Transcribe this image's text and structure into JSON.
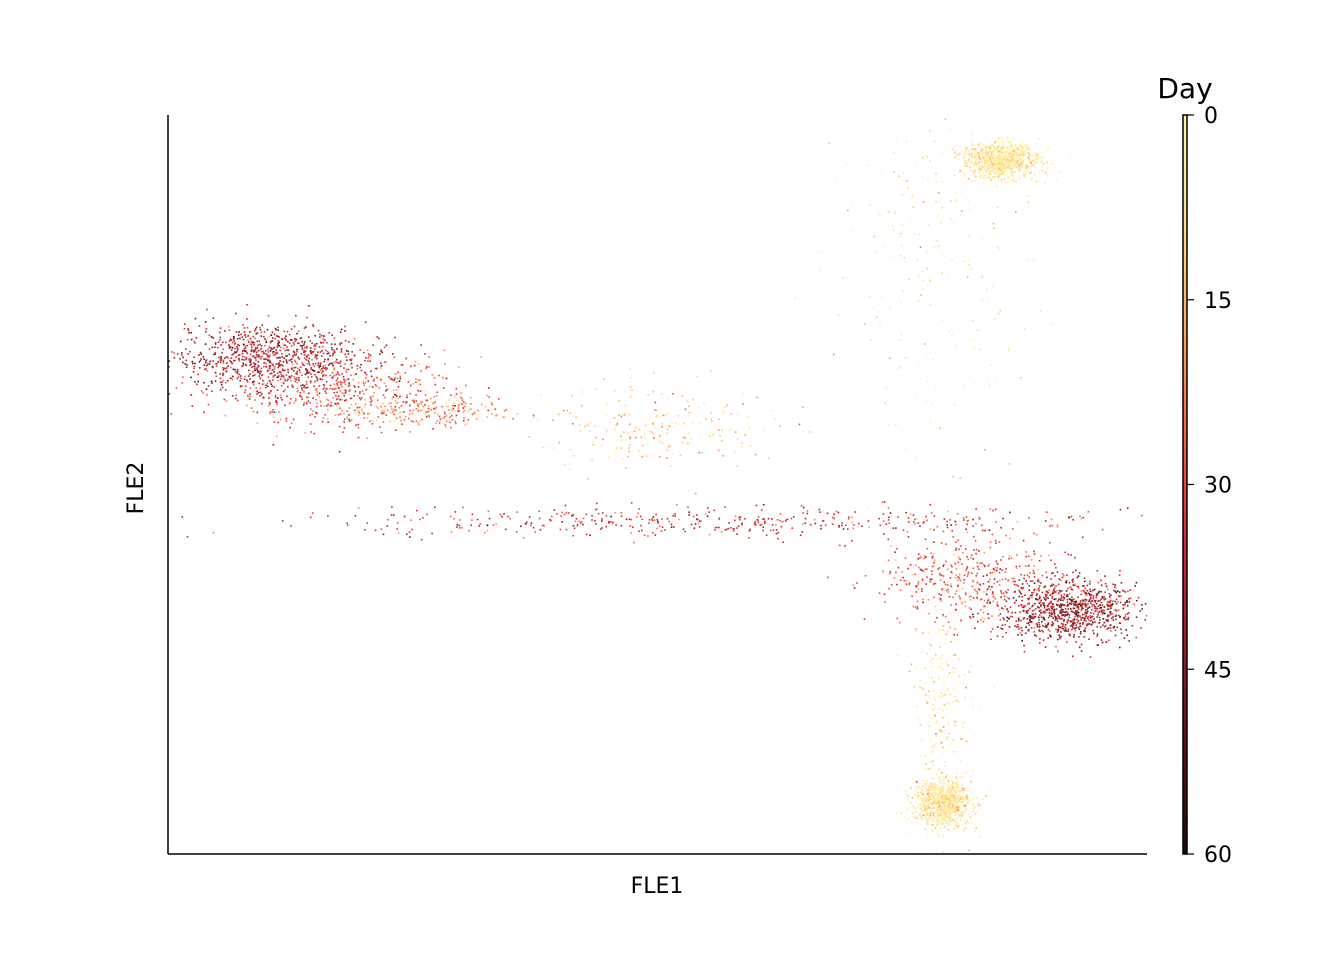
{
  "chart_data": {
    "type": "scatter",
    "title": "",
    "xlabel": "FLE1",
    "ylabel": "FLE2",
    "x_ticks_shown": false,
    "y_ticks_shown": false,
    "grid": false,
    "colorbar": {
      "label": "Day",
      "range": [
        0,
        60
      ],
      "ticks": [
        "0",
        "15",
        "30",
        "45",
        "60"
      ],
      "tick_values": [
        0,
        15,
        30,
        45,
        60
      ],
      "colormap": [
        "#fff2b0",
        "#fee08b",
        "#fdae61",
        "#f46d43",
        "#d7303f",
        "#a0202a",
        "#5a1414",
        "#1e0a0a"
      ]
    },
    "clusters": [
      {
        "region": "left branch head",
        "x": 0.1,
        "y": 0.67,
        "spread": [
          0.05,
          0.025
        ],
        "day_mean": 40,
        "density": "high"
      },
      {
        "region": "left branch body",
        "x": 0.17,
        "y": 0.63,
        "spread": [
          0.06,
          0.025
        ],
        "day_mean": 30,
        "density": "medium"
      },
      {
        "region": "left trunk",
        "x": 0.26,
        "y": 0.6,
        "spread": [
          0.04,
          0.012
        ],
        "day_mean": 22,
        "density": "low"
      },
      {
        "region": "center hub",
        "x": 0.5,
        "y": 0.58,
        "spread": [
          0.06,
          0.03
        ],
        "day_mean": 12,
        "density": "low"
      },
      {
        "region": "diagonal bridge",
        "x": 0.55,
        "y": 0.45,
        "spread": [
          0.22,
          0.01
        ],
        "day_mean": 35,
        "density": "medium"
      },
      {
        "region": "upper-right branch",
        "x": 0.78,
        "y": 0.8,
        "spread": [
          0.05,
          0.12
        ],
        "day_mean": 5,
        "density": "low"
      },
      {
        "region": "upper-right tip",
        "x": 0.85,
        "y": 0.94,
        "spread": [
          0.02,
          0.012
        ],
        "day_mean": 3,
        "density": "high"
      },
      {
        "region": "right branch head",
        "x": 0.92,
        "y": 0.33,
        "spread": [
          0.035,
          0.02
        ],
        "day_mean": 42,
        "density": "high"
      },
      {
        "region": "right branch body",
        "x": 0.82,
        "y": 0.37,
        "spread": [
          0.05,
          0.03
        ],
        "day_mean": 30,
        "density": "medium"
      },
      {
        "region": "lower branch",
        "x": 0.79,
        "y": 0.2,
        "spread": [
          0.015,
          0.08
        ],
        "day_mean": 6,
        "density": "low"
      },
      {
        "region": "lower tip",
        "x": 0.79,
        "y": 0.07,
        "spread": [
          0.015,
          0.015
        ],
        "day_mean": 4,
        "density": "high"
      }
    ]
  }
}
